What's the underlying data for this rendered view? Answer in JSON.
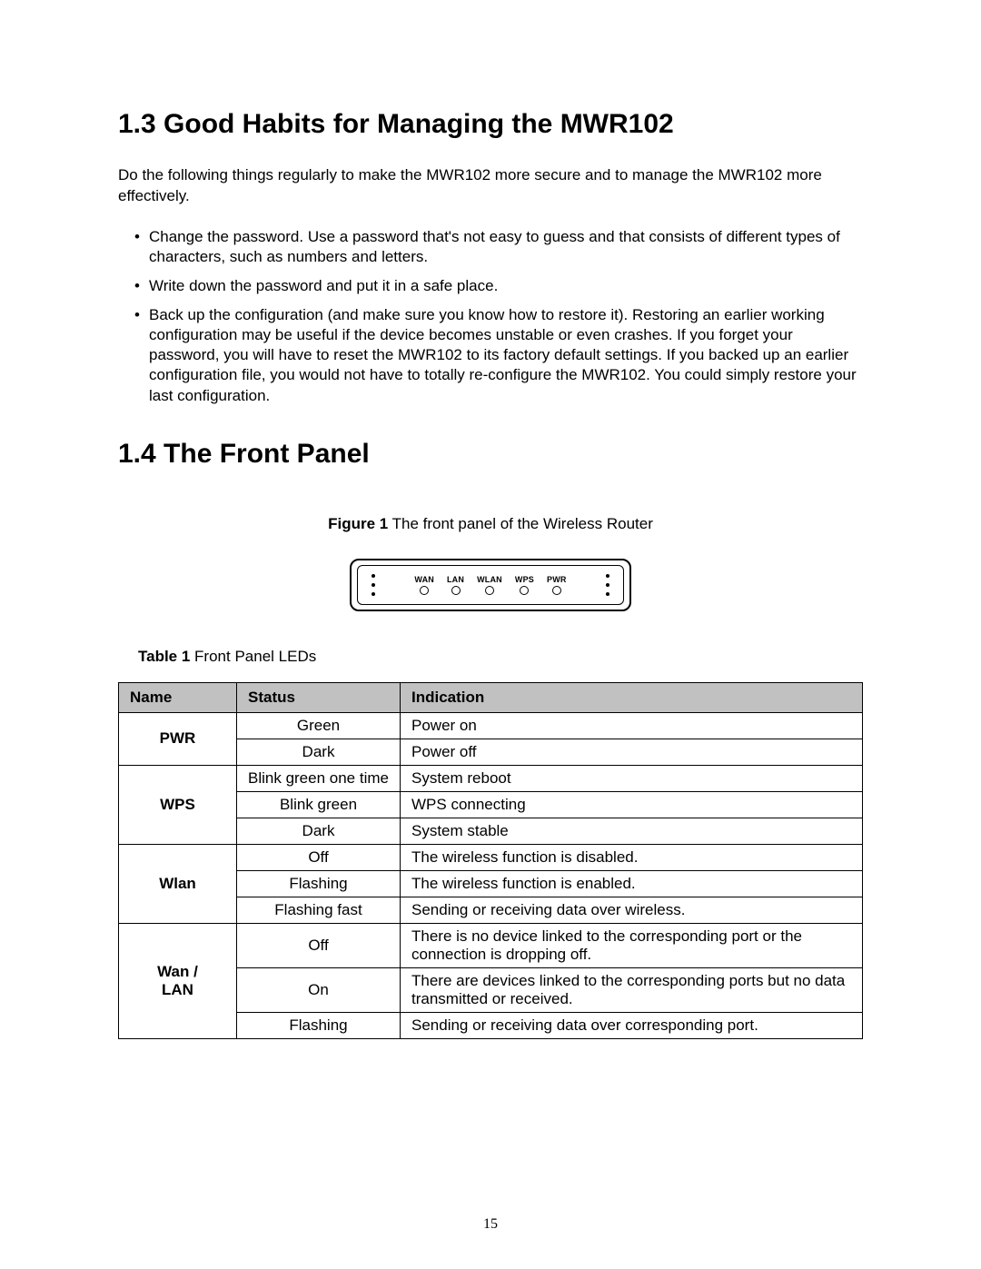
{
  "section1": {
    "heading": "1.3  Good Habits for Managing the MWR102",
    "intro": "Do the following things regularly to make the MWR102 more secure and to manage the MWR102 more effectively.",
    "bullets": [
      "Change the password. Use a password that's not easy to guess and that consists of different types of characters, such as numbers and letters.",
      "Write down the password and put it in a safe place.",
      "Back up the configuration (and make sure you know how to restore it). Restoring an earlier working configuration may be useful if the device becomes unstable or even crashes. If you forget your password, you will have to reset the MWR102 to its factory default settings. If you backed up an earlier configuration file, you would not have to totally re-configure the MWR102. You could simply restore your last configuration."
    ]
  },
  "section2": {
    "heading": "1.4  The Front Panel",
    "figure": {
      "label": "Figure 1",
      "text": " The front panel of the Wireless Router"
    },
    "router_leds": [
      "WAN",
      "LAN",
      "WLAN",
      "WPS",
      "PWR"
    ],
    "table_caption": {
      "label": "Table 1",
      "text": " Front Panel LEDs"
    },
    "table": {
      "columns": [
        "Name",
        "Status",
        "Indication"
      ],
      "groups": [
        {
          "name": "PWR",
          "rows": [
            {
              "status": "Green",
              "indication": "Power on"
            },
            {
              "status": "Dark",
              "indication": "Power off"
            }
          ]
        },
        {
          "name": "WPS",
          "rows": [
            {
              "status": "Blink green one time",
              "indication": "System reboot"
            },
            {
              "status": "Blink green",
              "indication": "WPS connecting"
            },
            {
              "status": "Dark",
              "indication": "System stable"
            }
          ]
        },
        {
          "name": "Wlan",
          "rows": [
            {
              "status": "Off",
              "indication": "The wireless function is disabled."
            },
            {
              "status": "Flashing",
              "indication": "The wireless function is enabled."
            },
            {
              "status": "Flashing fast",
              "indication": "Sending or receiving data over wireless."
            }
          ]
        },
        {
          "name": "Wan / LAN",
          "name_html": "Wan /<br>LAN",
          "rows": [
            {
              "status": "Off",
              "indication": "There is no device linked to the corresponding port or the connection is dropping off."
            },
            {
              "status": "On",
              "indication": "There are devices linked to the corresponding ports but no data transmitted or received."
            },
            {
              "status": "Flashing",
              "indication": "Sending or receiving data over corresponding port."
            }
          ]
        }
      ]
    }
  },
  "page_number": "15"
}
